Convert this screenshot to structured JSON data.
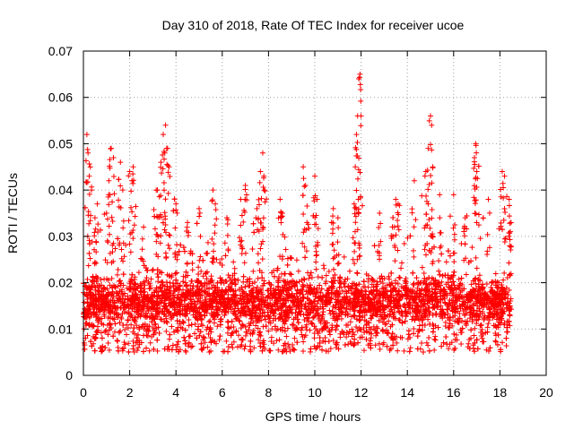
{
  "chart_data": {
    "type": "scatter",
    "title": "Day 310 of 2018, Rate Of TEC Index for receiver ucoe",
    "xlabel": "GPS time / hours",
    "ylabel": "ROTI / TECUs",
    "xlim": [
      0,
      20
    ],
    "ylim": [
      0,
      0.07
    ],
    "x_ticks": [
      "0",
      "2",
      "4",
      "6",
      "8",
      "10",
      "12",
      "14",
      "16",
      "18",
      "20"
    ],
    "y_ticks": [
      "0",
      "0.01",
      "0.02",
      "0.03",
      "0.04",
      "0.05",
      "0.06",
      "0.07"
    ],
    "grid": true,
    "marker": "plus",
    "color": "#ff0000",
    "series": [
      {
        "name": "ROTI",
        "baseline_band": {
          "x_range": [
            0,
            18.5
          ],
          "y_range": [
            0.005,
            0.025
          ]
        },
        "peaks": [
          {
            "x": 0.15,
            "y": 0.052
          },
          {
            "x": 0.2,
            "y": 0.048
          },
          {
            "x": 0.25,
            "y": 0.043
          },
          {
            "x": 0.35,
            "y": 0.04
          },
          {
            "x": 0.5,
            "y": 0.034
          },
          {
            "x": 0.6,
            "y": 0.037
          },
          {
            "x": 1.0,
            "y": 0.035
          },
          {
            "x": 1.1,
            "y": 0.042
          },
          {
            "x": 1.2,
            "y": 0.049
          },
          {
            "x": 1.3,
            "y": 0.047
          },
          {
            "x": 1.6,
            "y": 0.046
          },
          {
            "x": 1.7,
            "y": 0.04
          },
          {
            "x": 2.0,
            "y": 0.044
          },
          {
            "x": 2.1,
            "y": 0.042
          },
          {
            "x": 2.15,
            "y": 0.045
          },
          {
            "x": 2.6,
            "y": 0.032
          },
          {
            "x": 3.2,
            "y": 0.04
          },
          {
            "x": 3.35,
            "y": 0.046
          },
          {
            "x": 3.45,
            "y": 0.052
          },
          {
            "x": 3.55,
            "y": 0.054
          },
          {
            "x": 3.6,
            "y": 0.049
          },
          {
            "x": 3.7,
            "y": 0.045
          },
          {
            "x": 4.0,
            "y": 0.037
          },
          {
            "x": 4.5,
            "y": 0.033
          },
          {
            "x": 5.0,
            "y": 0.036
          },
          {
            "x": 5.6,
            "y": 0.04
          },
          {
            "x": 5.7,
            "y": 0.037
          },
          {
            "x": 6.2,
            "y": 0.034
          },
          {
            "x": 6.8,
            "y": 0.038
          },
          {
            "x": 7.0,
            "y": 0.041
          },
          {
            "x": 7.5,
            "y": 0.036
          },
          {
            "x": 7.65,
            "y": 0.044
          },
          {
            "x": 7.75,
            "y": 0.048
          },
          {
            "x": 7.8,
            "y": 0.043
          },
          {
            "x": 8.5,
            "y": 0.038
          },
          {
            "x": 8.6,
            "y": 0.035
          },
          {
            "x": 9.5,
            "y": 0.045
          },
          {
            "x": 9.6,
            "y": 0.041
          },
          {
            "x": 10.0,
            "y": 0.043
          },
          {
            "x": 10.1,
            "y": 0.038
          },
          {
            "x": 10.8,
            "y": 0.036
          },
          {
            "x": 11.0,
            "y": 0.034
          },
          {
            "x": 11.7,
            "y": 0.037
          },
          {
            "x": 11.75,
            "y": 0.045
          },
          {
            "x": 11.8,
            "y": 0.052
          },
          {
            "x": 11.85,
            "y": 0.056
          },
          {
            "x": 11.9,
            "y": 0.064
          },
          {
            "x": 11.95,
            "y": 0.065
          },
          {
            "x": 12.0,
            "y": 0.056
          },
          {
            "x": 12.8,
            "y": 0.035
          },
          {
            "x": 13.5,
            "y": 0.038
          },
          {
            "x": 13.6,
            "y": 0.037
          },
          {
            "x": 14.3,
            "y": 0.042
          },
          {
            "x": 14.8,
            "y": 0.044
          },
          {
            "x": 14.9,
            "y": 0.049
          },
          {
            "x": 15.0,
            "y": 0.056
          },
          {
            "x": 15.05,
            "y": 0.054
          },
          {
            "x": 15.1,
            "y": 0.045
          },
          {
            "x": 15.4,
            "y": 0.034
          },
          {
            "x": 16.0,
            "y": 0.039
          },
          {
            "x": 16.5,
            "y": 0.034
          },
          {
            "x": 16.9,
            "y": 0.047
          },
          {
            "x": 16.95,
            "y": 0.05
          },
          {
            "x": 17.0,
            "y": 0.044
          },
          {
            "x": 17.5,
            "y": 0.038
          },
          {
            "x": 18.1,
            "y": 0.044
          },
          {
            "x": 18.2,
            "y": 0.043
          },
          {
            "x": 18.4,
            "y": 0.038
          },
          {
            "x": 18.45,
            "y": 0.031
          }
        ]
      }
    ]
  }
}
